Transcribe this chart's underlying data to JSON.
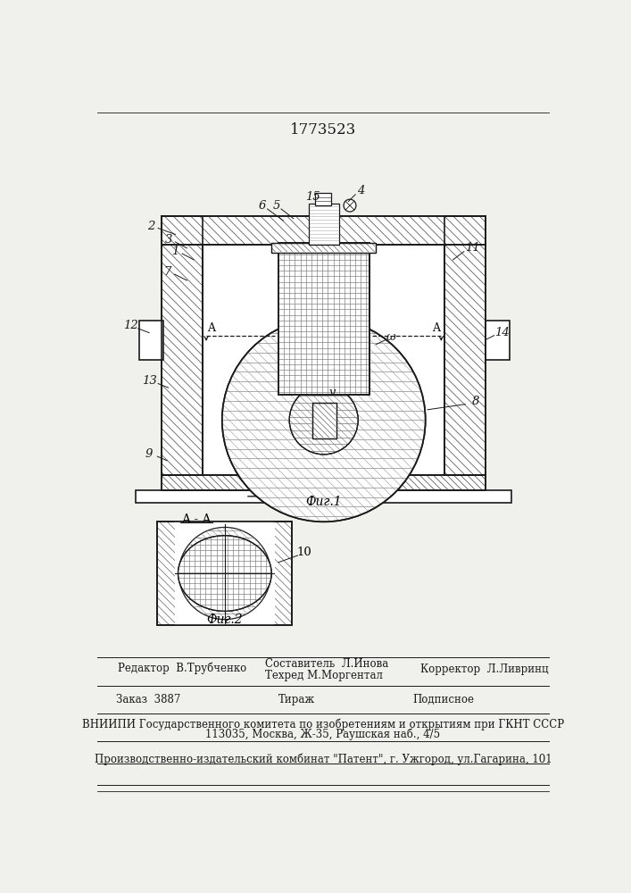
{
  "title": "1773523",
  "bg_color": "#f0f0ec",
  "footer_editor": "Редактор  В.Трубченко",
  "footer_sostavitel": "Составитель  Л.Инова",
  "footer_tehred": "Техред М.Моргентал",
  "footer_korrektor": "Корректор  Л.Ливринц",
  "footer_zakaz": "Заказ  3887",
  "footer_tirazh": "Тираж",
  "footer_podpisnoe": "Подписное",
  "footer_vniipи1": "ВНИИПИ Государственного комитета по изобретениям и открытиям при ГКНТ СССР",
  "footer_vniipи2": "113035, Москва, Ж-35, Раушская наб., 4/5",
  "footer_kombinat": "Производственно-издательский комбинат \"Патент\", г. Ужгород, ул.Гагарина, 101"
}
